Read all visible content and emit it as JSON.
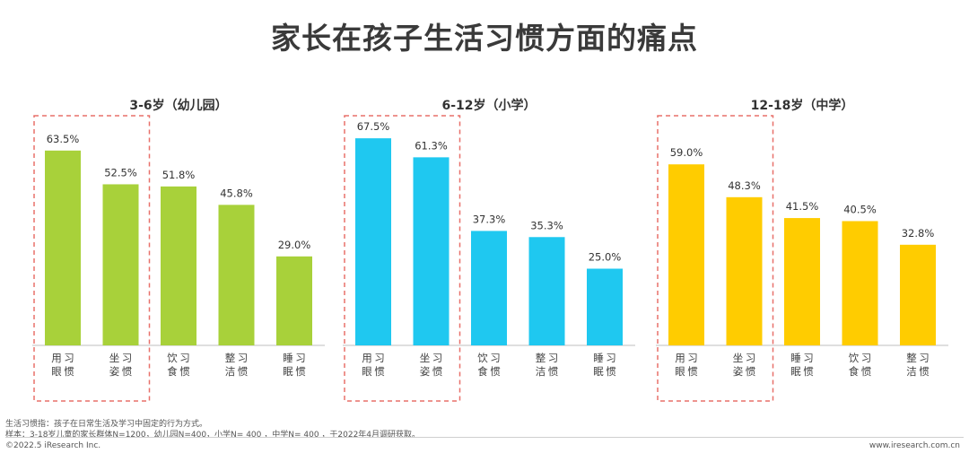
{
  "title": "家长在孩子生活习惯方面的痛点",
  "chart_data": [
    {
      "type": "bar",
      "title": "3-6岁（幼儿园）",
      "categories": [
        "用眼习惯",
        "坐姿习惯",
        "饮食习惯",
        "整洁习惯",
        "睡眠习惯"
      ],
      "values": [
        63.5,
        52.5,
        51.8,
        45.8,
        29.0
      ],
      "labels": [
        "63.5%",
        "52.5%",
        "51.8%",
        "45.8%",
        "29.0%"
      ],
      "color": "#a8d13a",
      "highlighted": [
        "用眼习惯",
        "坐姿习惯"
      ],
      "ylim": [
        0,
        70
      ]
    },
    {
      "type": "bar",
      "title": "6-12岁（小学）",
      "categories": [
        "用眼习惯",
        "坐姿习惯",
        "饮食习惯",
        "整洁习惯",
        "睡眠习惯"
      ],
      "values": [
        67.5,
        61.3,
        37.3,
        35.3,
        25.0
      ],
      "labels": [
        "67.5%",
        "61.3%",
        "37.3%",
        "35.3%",
        "25.0%"
      ],
      "color": "#1fc8f0",
      "highlighted": [
        "用眼习惯",
        "坐姿习惯"
      ],
      "ylim": [
        0,
        70
      ]
    },
    {
      "type": "bar",
      "title": "12-18岁（中学）",
      "categories": [
        "用眼习惯",
        "坐姿习惯",
        "睡眠习惯",
        "饮食习惯",
        "整洁习惯"
      ],
      "values": [
        59.0,
        48.3,
        41.5,
        40.5,
        32.8
      ],
      "labels": [
        "59.0%",
        "48.3%",
        "41.5%",
        "40.5%",
        "32.8%"
      ],
      "color": "#ffcc00",
      "highlighted": [
        "用眼习惯",
        "坐姿习惯"
      ],
      "ylim": [
        0,
        70
      ]
    }
  ],
  "notes": [
    "生活习惯指：孩子在日常生活及学习中固定的行为方式。",
    "样本：3-18岁儿童的家长群体N=1200，幼儿园N=400，小学N= 400 ，中学N= 400 ，于2022年4月调研获取。"
  ],
  "footer": {
    "left": "©2022.5 iResearch Inc.",
    "right": "www.iresearch.com.cn"
  },
  "colors": {
    "highlight_box": "#e8706a",
    "axis": "#bfbfbf"
  }
}
